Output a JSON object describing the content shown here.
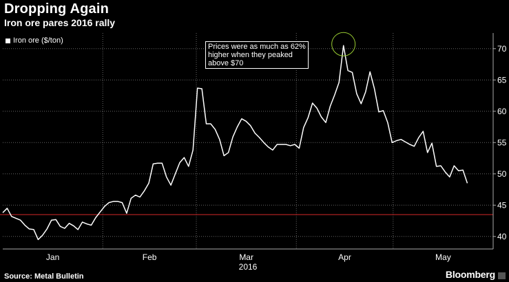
{
  "header": {
    "title": "Dropping Again",
    "subtitle": "Iron ore pares 2016 rally"
  },
  "footer": {
    "source": "Source: Metal Bulletin",
    "brand": "Bloomberg"
  },
  "colors": {
    "background": "#000000",
    "line": "#ffffff",
    "reference_line": "#d62728",
    "highlight_circle": "#9acd32",
    "grid": "#666666"
  },
  "chart_data": {
    "type": "line",
    "title": "Dropping Again",
    "subtitle": "Iron ore pares 2016 rally",
    "legend": {
      "position": "top-left",
      "entries": [
        "Iron ore ($/ton)"
      ]
    },
    "series": [
      {
        "name": "Iron ore ($/ton)",
        "values": [
          43.8,
          44.5,
          43.2,
          42.9,
          42.6,
          41.8,
          41.2,
          41.1,
          39.5,
          40.2,
          41.2,
          42.6,
          42.7,
          41.6,
          41.3,
          42.1,
          41.7,
          41.1,
          42.3,
          42.0,
          41.8,
          43.0,
          43.9,
          44.8,
          45.4,
          45.6,
          45.6,
          45.4,
          43.7,
          46.1,
          46.6,
          46.3,
          47.3,
          48.5,
          51.6,
          51.7,
          51.7,
          49.5,
          48.2,
          50.0,
          51.8,
          52.6,
          51.2,
          53.8,
          63.7,
          63.6,
          58.0,
          58.0,
          57.1,
          55.5,
          52.9,
          53.4,
          55.9,
          57.5,
          58.8,
          58.4,
          57.7,
          56.5,
          55.8,
          55.0,
          54.3,
          53.8,
          54.7,
          54.7,
          54.7,
          54.5,
          54.7,
          54.1,
          57.4,
          59.0,
          61.3,
          60.5,
          59.1,
          58.2,
          60.8,
          62.6,
          64.6,
          70.5,
          66.5,
          66.2,
          62.8,
          61.2,
          63.1,
          66.3,
          63.6,
          59.9,
          60.1,
          58.2,
          55.0,
          55.3,
          55.5,
          55.1,
          54.7,
          54.4,
          55.8,
          56.8,
          53.4,
          54.9,
          51.2,
          51.3,
          50.3,
          49.5,
          51.3,
          50.5,
          50.6,
          48.5
        ],
        "x_start": "2016-01-01",
        "x_end": "2016-05-24"
      }
    ],
    "reference_line": {
      "value": 43.5
    },
    "x_axis": {
      "tick_labels": [
        "Jan",
        "Feb",
        "Mar",
        "Apr",
        "May"
      ],
      "year_label": "2016"
    },
    "y_axis": {
      "position": "right",
      "ticks": [
        40,
        45,
        50,
        55,
        60,
        65,
        70
      ],
      "ylim": [
        38,
        72.5
      ]
    },
    "grid": true,
    "annotation": {
      "text_lines": [
        "Prices were as much as 62%",
        "higher when they peaked",
        "above $70"
      ],
      "target_value": 70.5
    }
  }
}
